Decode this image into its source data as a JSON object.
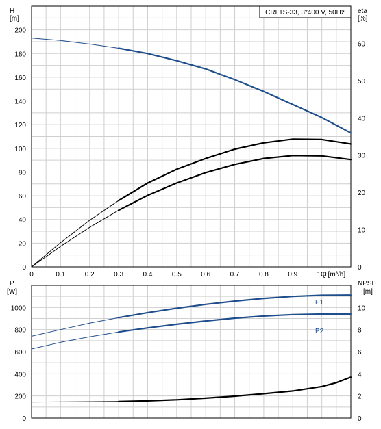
{
  "chart_data": [
    {
      "type": "line",
      "title": "CRI 1S-33, 3*400 V, 50Hz",
      "xlabel": "Q [m³/h]",
      "ylabel": "H [m]",
      "ylabel_right": "eta [%]",
      "y_axis_left": {
        "name": "H",
        "unit": "[m]"
      },
      "y_axis_right": {
        "name": "eta",
        "unit": "[%]"
      },
      "xlim": [
        0,
        1.1
      ],
      "ylim": [
        0,
        220
      ],
      "ylim_right": [
        0,
        70
      ],
      "x_ticks": [
        "0",
        "0.1",
        "0.2",
        "0.3",
        "0.4",
        "0.5",
        "0.6",
        "0.7",
        "0.8",
        "0.9",
        "1.0"
      ],
      "x_tick_values": [
        0,
        0.1,
        0.2,
        0.3,
        0.4,
        0.5,
        0.6,
        0.7,
        0.8,
        0.9,
        1.0
      ],
      "y_ticks_left": [
        "0",
        "20",
        "40",
        "60",
        "80",
        "100",
        "120",
        "140",
        "160",
        "180",
        "200"
      ],
      "y_tick_values_left": [
        0,
        20,
        40,
        60,
        80,
        100,
        120,
        140,
        160,
        180,
        200
      ],
      "y_ticks_right": [
        "0",
        "10",
        "20",
        "30",
        "40",
        "50",
        "60"
      ],
      "y_tick_values_right": [
        0,
        10,
        20,
        30,
        40,
        50,
        60
      ],
      "grid": true,
      "series": [
        {
          "key": "H",
          "axis": "left",
          "color": "#1f4e8c",
          "x": [
            0,
            0.1,
            0.2,
            0.3,
            0.4,
            0.5,
            0.6,
            0.7,
            0.8,
            0.9,
            1.0,
            1.1
          ],
          "values": [
            193,
            191,
            188,
            184.5,
            180,
            174,
            167,
            158,
            148,
            137,
            126,
            113
          ],
          "duty_start": 0.3
        },
        {
          "key": "eta_1",
          "axis": "right",
          "color": "#000000",
          "x": [
            0,
            0.1,
            0.2,
            0.3,
            0.4,
            0.5,
            0.6,
            0.7,
            0.8,
            0.9,
            1.0,
            1.1
          ],
          "values": [
            0,
            6.5,
            12.5,
            17.8,
            22.5,
            26.2,
            29.1,
            31.6,
            33.3,
            34.3,
            34.2,
            33.0
          ],
          "duty_start": 0.3
        },
        {
          "key": "eta_2",
          "axis": "right",
          "color": "#000000",
          "x": [
            0,
            0.1,
            0.2,
            0.3,
            0.4,
            0.5,
            0.6,
            0.7,
            0.8,
            0.9,
            1.0,
            1.1
          ],
          "values": [
            0,
            5.5,
            10.6,
            15.2,
            19.2,
            22.5,
            25.3,
            27.5,
            29.1,
            29.9,
            29.8,
            28.8
          ],
          "duty_start": 0.3
        }
      ]
    },
    {
      "type": "line",
      "xlabel": "",
      "ylabel": "P [W]",
      "ylabel_right": "NPSH [m]",
      "y_axis_left": {
        "name": "P",
        "unit": "[W]"
      },
      "y_axis_right": {
        "name": "NPSH",
        "unit": "[m]"
      },
      "xlim": [
        0,
        1.1
      ],
      "ylim": [
        0,
        1200
      ],
      "ylim_right": [
        0,
        12
      ],
      "y_ticks_left": [
        "0",
        "200",
        "400",
        "600",
        "800",
        "1000"
      ],
      "y_tick_values_left": [
        0,
        200,
        400,
        600,
        800,
        1000
      ],
      "y_ticks_right": [
        "0",
        "2",
        "4",
        "6",
        "8",
        "10"
      ],
      "y_tick_values_right": [
        0,
        2,
        4,
        6,
        8,
        10
      ],
      "grid": true,
      "series": [
        {
          "name": "P1",
          "axis": "left",
          "color": "#1f4e8c",
          "x": [
            0,
            0.1,
            0.2,
            0.3,
            0.4,
            0.5,
            0.6,
            0.7,
            0.8,
            0.9,
            1.0,
            1.1
          ],
          "values": [
            740,
            800,
            858,
            908,
            953,
            993,
            1028,
            1057,
            1082,
            1100,
            1110,
            1112
          ],
          "duty_start": 0.3
        },
        {
          "name": "P2",
          "axis": "left",
          "color": "#1f4e8c",
          "x": [
            0,
            0.1,
            0.2,
            0.3,
            0.4,
            0.5,
            0.6,
            0.7,
            0.8,
            0.9,
            1.0,
            1.1
          ],
          "values": [
            625,
            685,
            735,
            778,
            815,
            848,
            878,
            903,
            922,
            935,
            940,
            940
          ],
          "duty_start": 0.3
        },
        {
          "key": "NPSH",
          "axis": "right",
          "color": "#000000",
          "x": [
            0,
            0.1,
            0.2,
            0.3,
            0.4,
            0.5,
            0.6,
            0.7,
            0.8,
            0.9,
            1.0,
            1.05,
            1.1
          ],
          "values": [
            1.45,
            1.46,
            1.48,
            1.5,
            1.55,
            1.65,
            1.8,
            1.98,
            2.2,
            2.45,
            2.85,
            3.2,
            3.7
          ],
          "duty_start": 0.3
        }
      ]
    }
  ]
}
